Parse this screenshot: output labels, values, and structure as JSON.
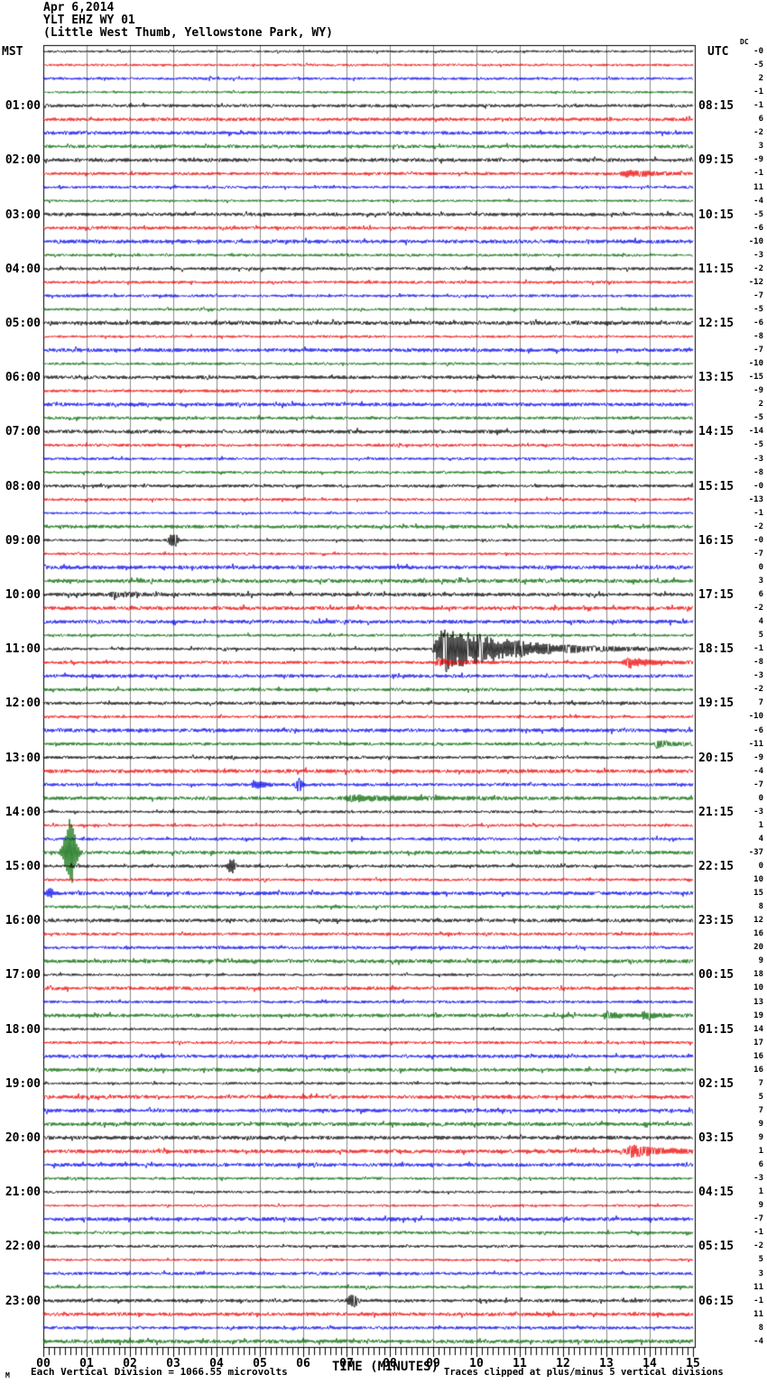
{
  "header": {
    "date": "Apr 6,2014",
    "station": "YLT EHZ WY 01",
    "location": "(Little West Thumb, Yellowstone Park, WY)"
  },
  "axis": {
    "left_header": "MST",
    "right_header": "UTC",
    "dc_header": "DC",
    "left_labels": [
      "01:00",
      "02:00",
      "03:00",
      "04:00",
      "05:00",
      "06:00",
      "07:00",
      "08:00",
      "09:00",
      "10:00",
      "11:00",
      "12:00",
      "13:00",
      "14:00",
      "15:00",
      "16:00",
      "17:00",
      "18:00",
      "19:00",
      "20:00",
      "21:00",
      "22:00",
      "23:00"
    ],
    "right_labels": [
      "08:15",
      "09:15",
      "10:15",
      "11:15",
      "12:15",
      "13:15",
      "14:15",
      "15:15",
      "16:15",
      "17:15",
      "18:15",
      "19:15",
      "20:15",
      "21:15",
      "22:15",
      "23:15",
      "00:15",
      "01:15",
      "02:15",
      "03:15",
      "04:15",
      "05:15",
      "06:15"
    ],
    "minute_labels": [
      "00",
      "01",
      "02",
      "03",
      "04",
      "05",
      "06",
      "07",
      "08",
      "09",
      "10",
      "11",
      "12",
      "13",
      "14",
      "15"
    ]
  },
  "footer": {
    "corner_mark": "M",
    "scale": "Each Vertical Division = 1066.55 microvolts",
    "axis_title": "TIME (MINUTES)",
    "clip_note": "Traces clipped at plus/minus 5 vertical divisions"
  },
  "colors": {
    "trace_cycle": [
      "#000000",
      "#ee0000",
      "#0000ee",
      "#006600"
    ],
    "grid": "#8a8a8a",
    "border": "#000000",
    "background": "#ffffff"
  },
  "chart_data": {
    "type": "line",
    "subtype": "helicorder-seismogram",
    "title": "YLT EHZ WY 01 — Apr 6,2014 (Little West Thumb, Yellowstone Park, WY)",
    "xlabel": "TIME (MINUTES)",
    "x_range": [
      0,
      15
    ],
    "minutes_per_row": 15,
    "num_rows": 96,
    "rows_per_hour": 4,
    "first_row_start_mst": "00:00",
    "utc_offset_hours": 7,
    "trace_color_cycle": [
      "black",
      "red",
      "blue",
      "green"
    ],
    "clip_divisions": 5,
    "microvolts_per_division": 1066.55,
    "dc_offsets": [
      "-0",
      "-5",
      "2",
      "-1",
      "-1",
      "6",
      "-2",
      "3",
      "-9",
      "-1",
      "11",
      "-4",
      "-5",
      "-6",
      "-10",
      "-3",
      "-2",
      "-12",
      "-7",
      "-5",
      "-6",
      "-8",
      "-7",
      "-10",
      "-15",
      "-9",
      "2",
      "-5",
      "-14",
      "-5",
      "-3",
      "-8",
      "-0",
      "-13",
      "-1",
      "-2",
      "-0",
      "-7",
      "0",
      "3",
      "6",
      "-2",
      "4",
      "5",
      "-1",
      "-8",
      "-3",
      "-2",
      "7",
      "-10",
      "-6",
      "-11",
      "-9",
      "-4",
      "-7",
      "0",
      "-3",
      "1",
      "4",
      "-37",
      "0",
      "10",
      "15",
      "8",
      "12",
      "16",
      "20",
      "9",
      "18",
      "10",
      "13",
      "19",
      "14",
      "17",
      "16",
      "16",
      "7",
      "5",
      "7",
      "9",
      "9",
      "1",
      "6",
      "-3",
      "1",
      "9",
      "-7",
      "-1",
      "-2",
      "5",
      "3",
      "11",
      "-1",
      "11",
      "8",
      "-4"
    ],
    "events": [
      {
        "row": 9,
        "minute": 13.3,
        "duration_min": 0.7,
        "amplitude": 4,
        "shape": "burst"
      },
      {
        "row": 36,
        "minute": 3.0,
        "duration_min": 0.15,
        "amplitude": 9,
        "shape": "spike"
      },
      {
        "row": 40,
        "minute": 1.5,
        "duration_min": 0.5,
        "amplitude": 3,
        "shape": "burst"
      },
      {
        "row": 44,
        "minute": 8.95,
        "duration_min": 1.6,
        "amplitude": 27,
        "shape": "burst"
      },
      {
        "row": 45,
        "minute": 9.0,
        "duration_min": 0.6,
        "amplitude": 3.5,
        "shape": "burst"
      },
      {
        "row": 45,
        "minute": 13.35,
        "duration_min": 0.7,
        "amplitude": 5,
        "shape": "burst"
      },
      {
        "row": 51,
        "minute": 14.1,
        "duration_min": 0.4,
        "amplitude": 3.5,
        "shape": "burst"
      },
      {
        "row": 54,
        "minute": 4.8,
        "duration_min": 0.3,
        "amplitude": 5,
        "shape": "burst"
      },
      {
        "row": 54,
        "minute": 5.9,
        "duration_min": 0.12,
        "amplitude": 7,
        "shape": "spike"
      },
      {
        "row": 55,
        "minute": 6.8,
        "duration_min": 1.6,
        "amplitude": 3,
        "shape": "burst"
      },
      {
        "row": 59,
        "minute": 0.62,
        "duration_min": 0.2,
        "amplitude": 38,
        "shape": "spike"
      },
      {
        "row": 60,
        "minute": 4.35,
        "duration_min": 0.12,
        "amplitude": 10,
        "shape": "spike"
      },
      {
        "row": 62,
        "minute": 0.15,
        "duration_min": 0.1,
        "amplitude": 6,
        "shape": "spike"
      },
      {
        "row": 71,
        "minute": 12.9,
        "duration_min": 0.4,
        "amplitude": 4,
        "shape": "burst"
      },
      {
        "row": 71,
        "minute": 13.8,
        "duration_min": 0.3,
        "amplitude": 4,
        "shape": "burst"
      },
      {
        "row": 81,
        "minute": 13.4,
        "duration_min": 0.8,
        "amplitude": 7,
        "shape": "burst"
      },
      {
        "row": 92,
        "minute": 7.15,
        "duration_min": 0.15,
        "amplitude": 7,
        "shape": "spike"
      }
    ]
  }
}
